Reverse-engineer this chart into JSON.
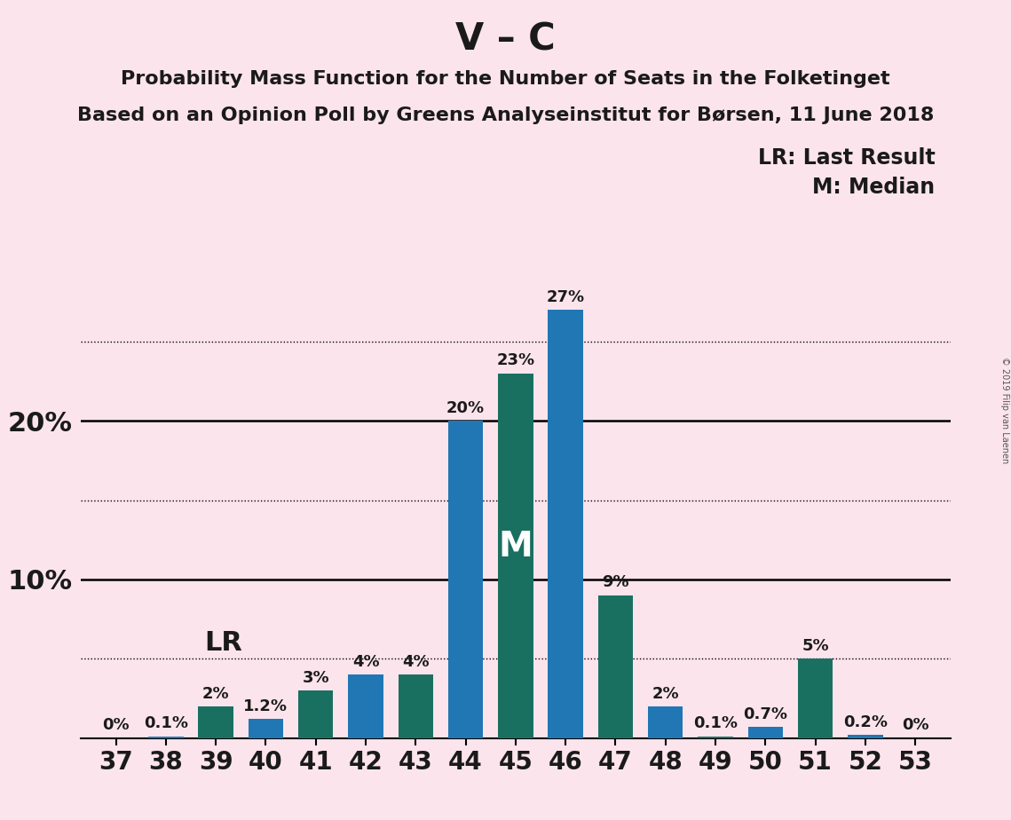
{
  "title": "V – C",
  "subtitle1": "Probability Mass Function for the Number of Seats in the Folketinget",
  "subtitle2": "Based on an Opinion Poll by Greens Analyseinstitut for Børsen, 11 June 2018",
  "copyright": "© 2019 Filip van Laenen",
  "legend_lr": "LR: Last Result",
  "legend_m": "M: Median",
  "seats": [
    37,
    38,
    39,
    40,
    41,
    42,
    43,
    44,
    45,
    46,
    47,
    48,
    49,
    50,
    51,
    52,
    53
  ],
  "values": [
    0.0,
    0.1,
    2.0,
    1.2,
    3.0,
    4.0,
    4.0,
    20.0,
    23.0,
    27.0,
    9.0,
    2.0,
    0.1,
    0.7,
    5.0,
    0.2,
    0.0
  ],
  "labels": [
    "0%",
    "0.1%",
    "2%",
    "1.2%",
    "3%",
    "4%",
    "4%",
    "20%",
    "23%",
    "27%",
    "9%",
    "2%",
    "0.1%",
    "0.7%",
    "5%",
    "0.2%",
    "0%"
  ],
  "colors": [
    "#2077b4",
    "#2077b4",
    "#1a7060",
    "#2077b4",
    "#1a7060",
    "#2077b4",
    "#1a7060",
    "#2077b4",
    "#1a7060",
    "#2077b4",
    "#1a7060",
    "#2077b4",
    "#1a7060",
    "#2077b4",
    "#1a7060",
    "#2077b4",
    "#1a7060"
  ],
  "lr_seat": 40,
  "median_seat": 45,
  "background_color": "#fce4ec",
  "ylim": [
    0,
    30
  ],
  "solid_lines": [
    10,
    20
  ],
  "dotted_lines": [
    5,
    15,
    25
  ],
  "bar_width": 0.7,
  "title_fontsize": 30,
  "subtitle_fontsize": 16,
  "label_fontsize": 13,
  "tick_fontsize": 20,
  "ytick_fontsize": 22,
  "legend_fontsize": 17,
  "lr_fontsize": 22,
  "m_fontsize": 28
}
